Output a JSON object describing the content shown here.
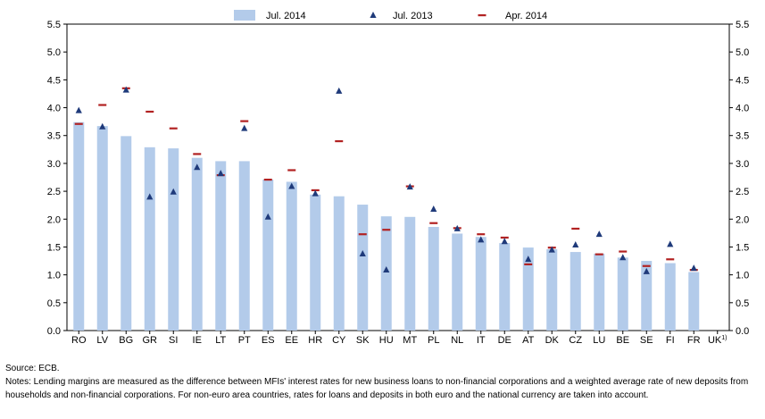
{
  "chart_data": {
    "type": "bar",
    "categories": [
      "RO",
      "LV",
      "BG",
      "GR",
      "SI",
      "IE",
      "LT",
      "PT",
      "ES",
      "EE",
      "HR",
      "CY",
      "SK",
      "HU",
      "MT",
      "PL",
      "NL",
      "IT",
      "DE",
      "AT",
      "DK",
      "CZ",
      "LU",
      "BE",
      "SE",
      "FI",
      "FR",
      "UK"
    ],
    "footnote_marker": "1)",
    "series": [
      {
        "name": "Jul. 2014",
        "mark": "bar",
        "color": "#b3cbea",
        "values": [
          3.74,
          3.67,
          3.49,
          3.29,
          3.27,
          3.1,
          3.04,
          3.04,
          2.71,
          2.67,
          2.44,
          2.41,
          2.26,
          2.05,
          2.04,
          1.86,
          1.74,
          1.68,
          1.57,
          1.49,
          1.46,
          1.41,
          1.38,
          1.31,
          1.25,
          1.21,
          1.05,
          null
        ]
      },
      {
        "name": "Jul. 2013",
        "mark": "triangle",
        "color": "#1f3a7a",
        "values": [
          3.95,
          3.66,
          4.32,
          2.4,
          2.49,
          2.93,
          2.82,
          3.63,
          2.04,
          2.59,
          2.46,
          4.3,
          1.38,
          1.09,
          2.58,
          2.18,
          1.83,
          1.63,
          1.6,
          1.28,
          1.45,
          1.54,
          1.73,
          1.31,
          1.06,
          1.55,
          1.12,
          null
        ]
      },
      {
        "name": "Apr. 2014",
        "mark": "dash",
        "color": "#b22222",
        "values": [
          3.71,
          4.05,
          4.35,
          3.93,
          3.63,
          3.17,
          2.79,
          3.76,
          2.71,
          2.88,
          2.52,
          3.4,
          1.73,
          1.81,
          2.59,
          1.93,
          1.84,
          1.73,
          1.67,
          1.19,
          1.49,
          1.83,
          1.37,
          1.42,
          1.16,
          1.28,
          1.09,
          null
        ]
      }
    ],
    "ylim": [
      0,
      5.5
    ],
    "yticks": [
      "0.0",
      "0.5",
      "1.0",
      "1.5",
      "2.0",
      "2.5",
      "3.0",
      "3.5",
      "4.0",
      "4.5",
      "5.0",
      "5.5"
    ],
    "ytick_values": [
      0,
      0.5,
      1.0,
      1.5,
      2.0,
      2.5,
      3.0,
      3.5,
      4.0,
      4.5,
      5.0,
      5.5
    ],
    "grid": false,
    "dual_y_axis": true,
    "legend_position": "top"
  },
  "notes": {
    "source": "Source: ECB.",
    "text": "Notes: Lending margins are measured as the difference between MFIs' interest rates for new business loans to non-financial corporations and a weighted average rate of new deposits from households and non-financial corporations. For non-euro area countries, rates for loans and deposits in both euro and the national currency are taken into account."
  }
}
